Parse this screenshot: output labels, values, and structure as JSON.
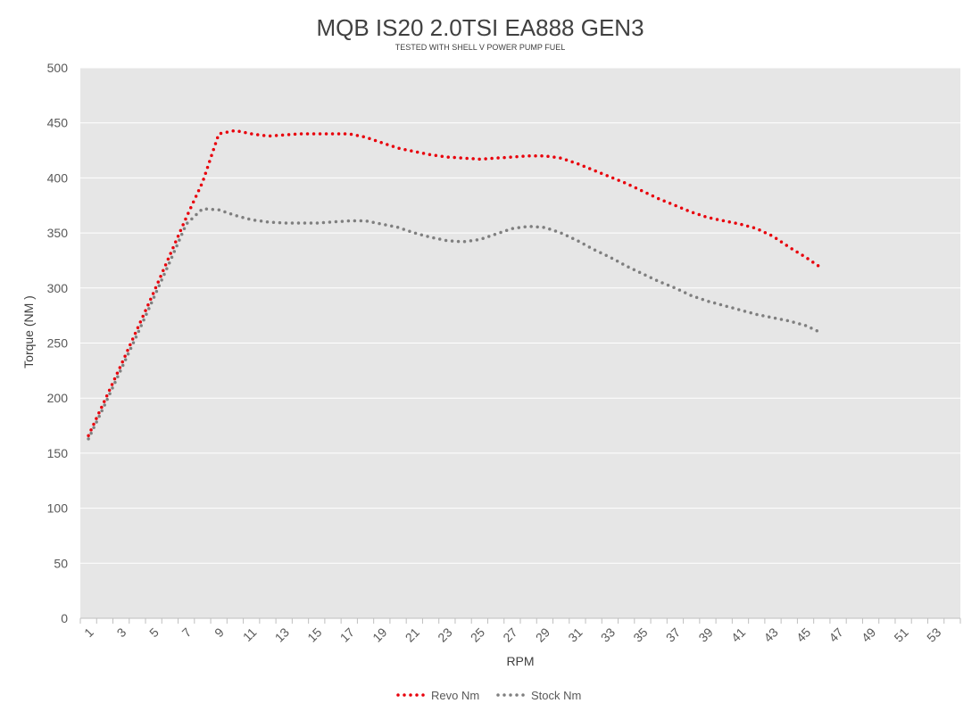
{
  "chart_data": {
    "type": "line",
    "title": "MQB IS20 2.0TSI EA888  GEN3",
    "subtitle": "TESTED WITH SHELL V POWER PUMP FUEL",
    "xlabel": "RPM",
    "ylabel": "Torque (NM )",
    "ylim": [
      0,
      500
    ],
    "ystep": 50,
    "yticks": [
      "0",
      "50",
      "100",
      "150",
      "200",
      "250",
      "300",
      "350",
      "400",
      "450",
      "500"
    ],
    "x": [
      1,
      2,
      3,
      4,
      5,
      6,
      7,
      8,
      9,
      10,
      11,
      12,
      13,
      14,
      15,
      16,
      17,
      18,
      19,
      20,
      21,
      22,
      23,
      24,
      25,
      26,
      27,
      28,
      29,
      30,
      31,
      32,
      33,
      34,
      35,
      36,
      37,
      38,
      39,
      40,
      41,
      42,
      43,
      44,
      45,
      46,
      47,
      48,
      49,
      50,
      51,
      52,
      53,
      54
    ],
    "xtick_labels": [
      "1",
      "3",
      "5",
      "7",
      "9",
      "11",
      "13",
      "15",
      "17",
      "19",
      "21",
      "23",
      "25",
      "27",
      "29",
      "31",
      "33",
      "35",
      "37",
      "39",
      "41",
      "43",
      "45",
      "47",
      "49",
      "51",
      "53"
    ],
    "grid": true,
    "plot_background": "#e6e6e6",
    "legend_position": "bottom",
    "series": [
      {
        "name": "Revo Nm",
        "color": "#e8000b",
        "values": [
          166,
          198,
          230,
          263,
          296,
          330,
          364,
          396,
          440,
          443,
          440,
          438,
          439,
          440,
          440,
          440,
          440,
          437,
          432,
          427,
          424,
          421,
          419,
          418,
          417,
          418,
          419,
          420,
          420,
          418,
          413,
          407,
          401,
          395,
          388,
          381,
          375,
          369,
          364,
          361,
          358,
          354,
          347,
          337,
          328,
          318,
          null,
          null,
          null,
          null,
          null,
          null,
          null,
          null
        ]
      },
      {
        "name": "Stock Nm",
        "color": "#7f7f7f",
        "values": [
          163,
          194,
          226,
          258,
          291,
          324,
          358,
          372,
          371,
          366,
          362,
          360,
          359,
          359,
          359,
          360,
          361,
          361,
          358,
          355,
          350,
          346,
          343,
          342,
          344,
          349,
          354,
          356,
          355,
          350,
          343,
          335,
          328,
          320,
          313,
          306,
          300,
          293,
          288,
          284,
          280,
          276,
          273,
          270,
          266,
          259,
          null,
          null,
          null,
          null,
          null,
          null,
          null,
          null
        ]
      }
    ]
  }
}
